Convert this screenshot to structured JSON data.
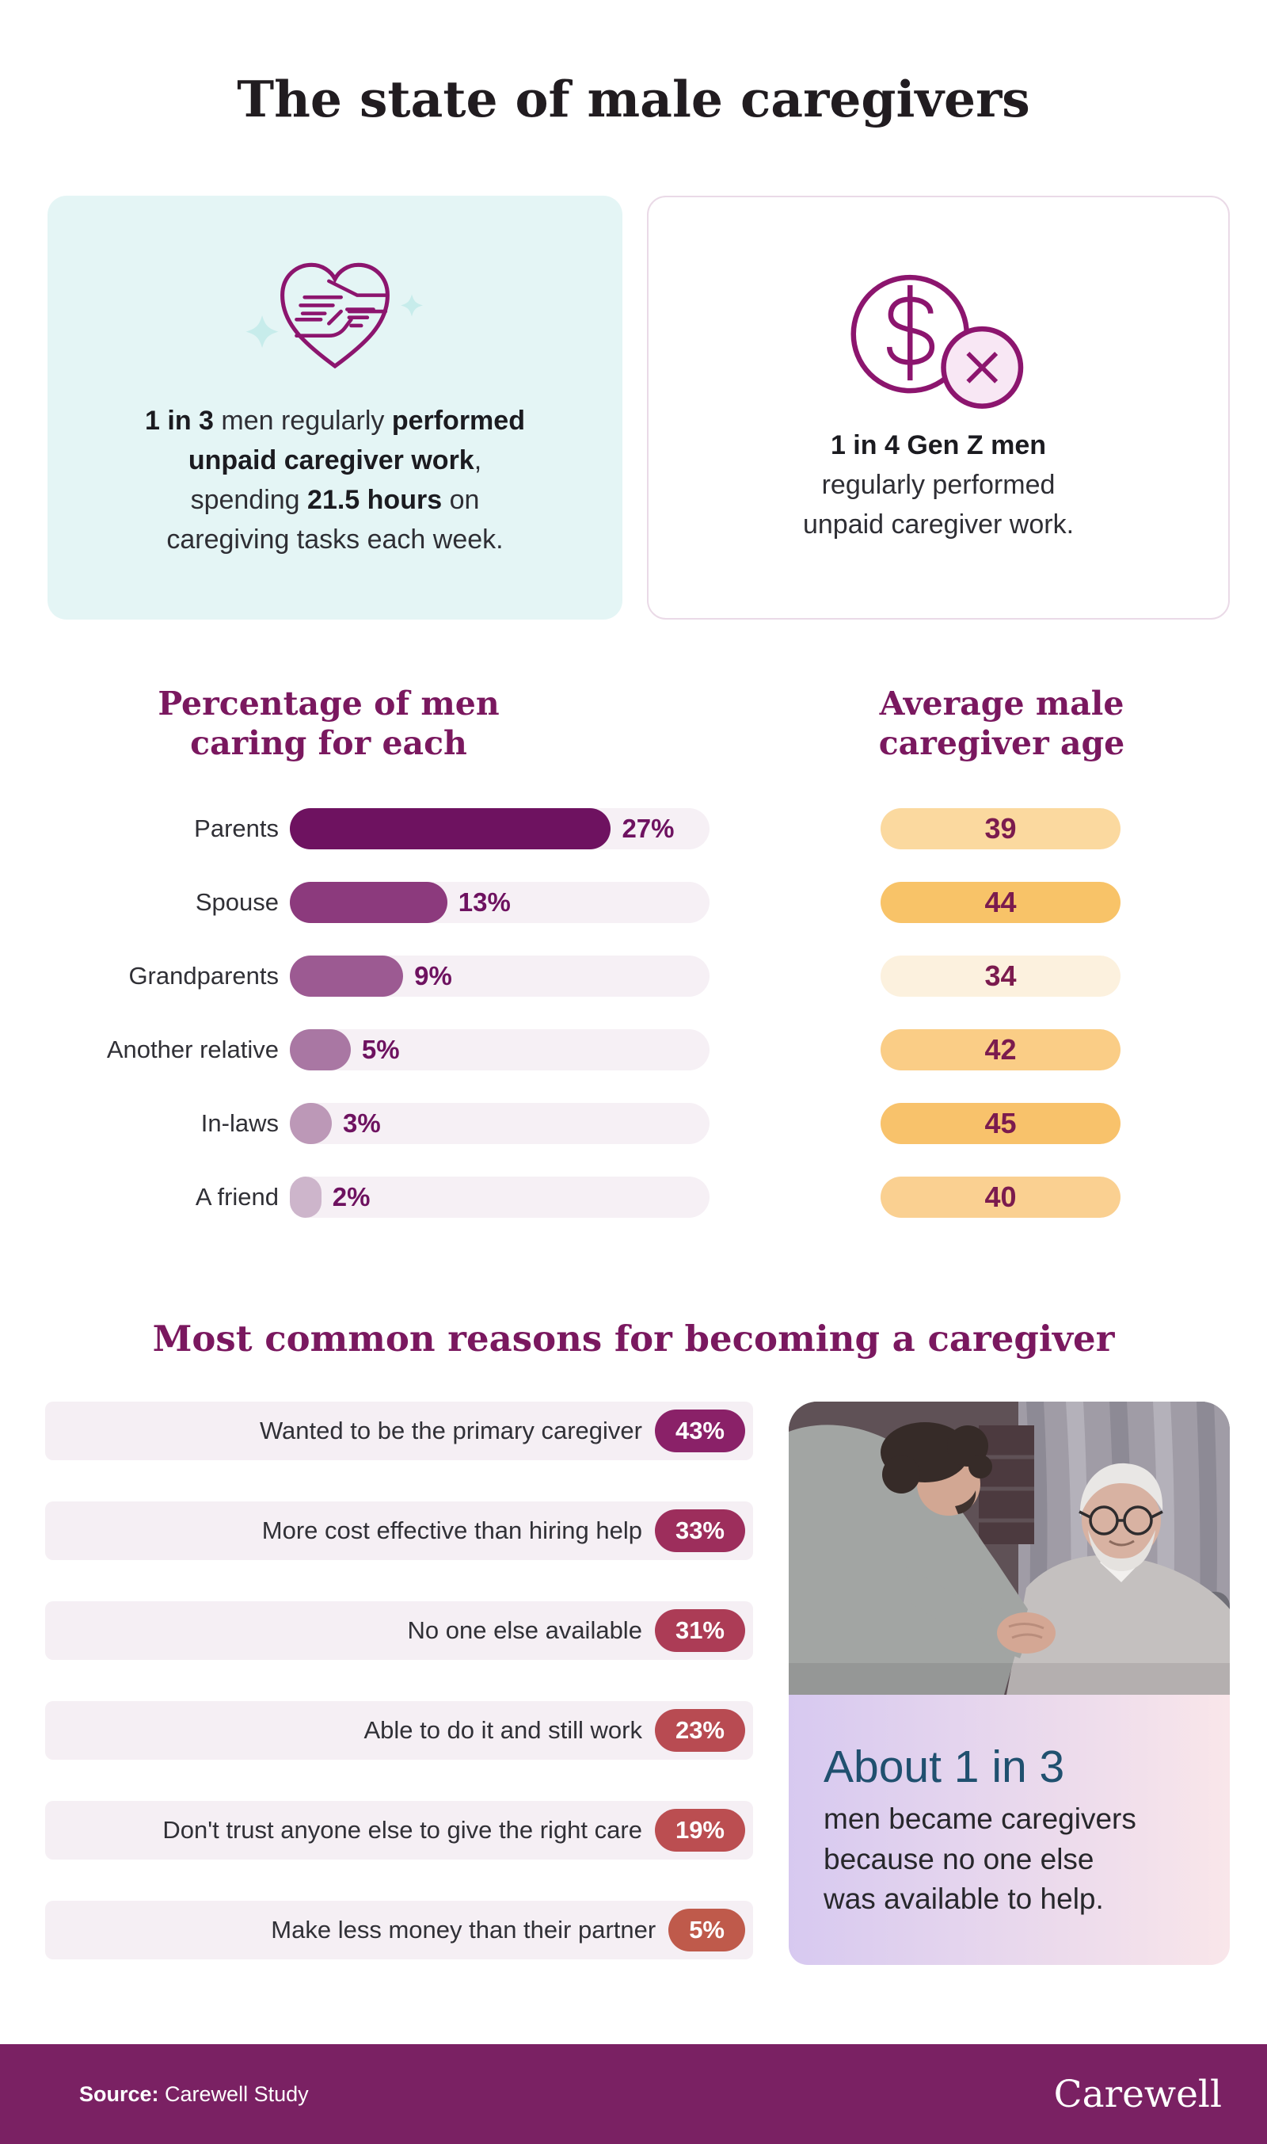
{
  "page": {
    "title": "The state of male caregivers",
    "background": "#ffffff",
    "accent_purple": "#7A185F"
  },
  "stat_cards": [
    {
      "icon": "hands-heart-icon",
      "bg": "#E4F5F5",
      "segments": [
        {
          "text": "1 in 3",
          "bold": true
        },
        {
          "text": " men regularly ",
          "bold": false
        },
        {
          "text": "performed\nunpaid caregiver work",
          "bold": true
        },
        {
          "text": ",\nspending ",
          "bold": false
        },
        {
          "text": "21.5 hours",
          "bold": true
        },
        {
          "text": " on\ncaregiving tasks each week.",
          "bold": false
        }
      ]
    },
    {
      "icon": "dollar-crossed-icon",
      "border": "#EADAE7",
      "segments": [
        {
          "text": "1 in 4 Gen Z men",
          "bold": true
        },
        {
          "text": "\nregularly performed\nunpaid caregiver work.",
          "bold": false
        }
      ]
    }
  ],
  "chart_data": [
    {
      "type": "bar",
      "title": "Percentage of men\ncaring for each",
      "categories": [
        "Parents",
        "Spouse",
        "Grandparents",
        "Another relative",
        "In-laws",
        "A friend"
      ],
      "values": [
        27,
        13,
        9,
        5,
        3,
        2
      ],
      "value_labels": [
        "27%",
        "13%",
        "9%",
        "5%",
        "3%",
        "2%"
      ],
      "unit": "%",
      "xlim": [
        0,
        34
      ],
      "bar_widths": [
        "76.5%",
        "37.5%",
        "27%",
        "14.5%",
        "10%",
        "7.5%"
      ],
      "bar_colors": [
        "#6E1260",
        "#8C3A7D",
        "#9C5A92",
        "#A977A3",
        "#BC98B7",
        "#CDB5CB"
      ],
      "track_color": "#F6F0F5",
      "value_color": "#6E1260",
      "grid": false,
      "legend": "none"
    },
    {
      "type": "bar",
      "title": "Average male\ncaregiver age",
      "categories": [
        "Parents",
        "Spouse",
        "Grandparents",
        "Another relative",
        "In-laws",
        "A friend"
      ],
      "values": [
        39,
        44,
        34,
        42,
        45,
        40
      ],
      "pill_colors": [
        "#FBD99F",
        "#F8C368",
        "#FCF1DE",
        "#FACD86",
        "#F8C26B",
        "#FAD091"
      ],
      "text_color": "#7B1B4E",
      "grid": false,
      "legend": "none"
    },
    {
      "type": "bar",
      "title": "Most common reasons for becoming a caregiver",
      "categories": [
        "Wanted to be the primary caregiver",
        "More cost effective than hiring help",
        "No one else available",
        "Able to do it and still work",
        "Don't trust anyone else to give the right care",
        "Make less money than their partner"
      ],
      "values": [
        43,
        33,
        31,
        23,
        19,
        5
      ],
      "value_labels": [
        "43%",
        "33%",
        "31%",
        "23%",
        "19%",
        "5%"
      ],
      "badge_colors": [
        "#8A2168",
        "#9D2E5C",
        "#AC3C56",
        "#B84B52",
        "#BB4E51",
        "#BF5A4B"
      ],
      "row_bg": "#F5EFF4",
      "grid": false,
      "legend": "none"
    }
  ],
  "photo_card": {
    "photo": "man-caring-for-elderly-man-photo",
    "caption_title": "About 1 in 3",
    "caption_title_color": "#20506F",
    "caption_body": "men became caregivers\nbecause no one else\nwas available to help.",
    "gradient_left": "#D7C9F0",
    "gradient_right": "#F9E6EA"
  },
  "footer": {
    "bg": "#7A2163",
    "source_label": "Source:",
    "source_value": " Carewell Study",
    "logo_text": "Carewell"
  }
}
